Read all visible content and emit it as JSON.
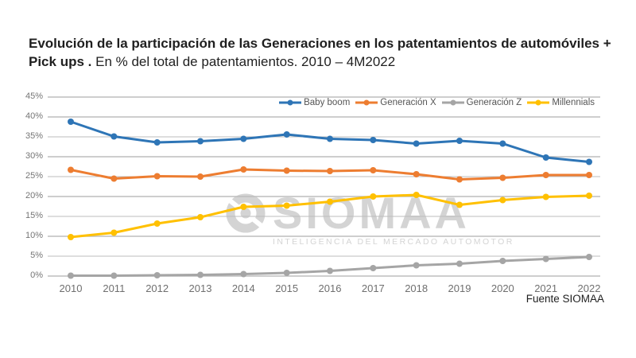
{
  "title": {
    "bold": "Evolución de la participación de las Generaciones en los patentamientos de automóviles + Pick ups .",
    "regular": "En % del total de patentamientos. 2010 – 4M2022"
  },
  "source": "Fuente SIOMAA",
  "watermark": {
    "logo": "siomaa-swirl-logo",
    "name": "SIOMAA",
    "tagline": "INTELIGENCIA DEL MERCADO AUTOMOTOR"
  },
  "colors": {
    "grid": "#bdbdbd",
    "axis_text": "#757575",
    "legend_text": "#555555",
    "watermark": "#d4d4d4"
  },
  "chart_data": {
    "type": "line",
    "title": "Evolución de la participación de las Generaciones en los patentamientos de automóviles + Pick ups. En % del total de patentamientos. 2010 – 4M2022",
    "x": [
      "2010",
      "2011",
      "2012",
      "2013",
      "2014",
      "2015",
      "2016",
      "2017",
      "2018",
      "2019",
      "2020",
      "2021",
      "2022"
    ],
    "series": [
      {
        "name": "Baby boom",
        "color": "#2E75B6",
        "values": [
          38.8,
          35.1,
          33.6,
          33.9,
          34.5,
          35.6,
          34.5,
          34.2,
          33.3,
          34.0,
          33.3,
          29.8,
          28.7
        ]
      },
      {
        "name": "Generación X",
        "color": "#ED7D31",
        "values": [
          26.7,
          24.5,
          25.1,
          25.0,
          26.8,
          26.5,
          26.4,
          26.6,
          25.6,
          24.3,
          24.7,
          25.4,
          25.4
        ]
      },
      {
        "name": "Generación Z",
        "color": "#A5A5A5",
        "values": [
          0.1,
          0.1,
          0.2,
          0.3,
          0.5,
          0.8,
          1.3,
          2.0,
          2.7,
          3.1,
          3.8,
          4.3,
          4.8
        ]
      },
      {
        "name": "Millennials",
        "color": "#FFC000",
        "values": [
          9.8,
          10.9,
          13.2,
          14.8,
          17.4,
          17.7,
          18.7,
          20.0,
          20.4,
          17.9,
          19.1,
          19.9,
          20.2
        ]
      }
    ],
    "ylim": [
      0,
      45
    ],
    "ytick_step": 5,
    "ytick_suffix": "%",
    "grid": true,
    "legend_position": "top-right"
  }
}
